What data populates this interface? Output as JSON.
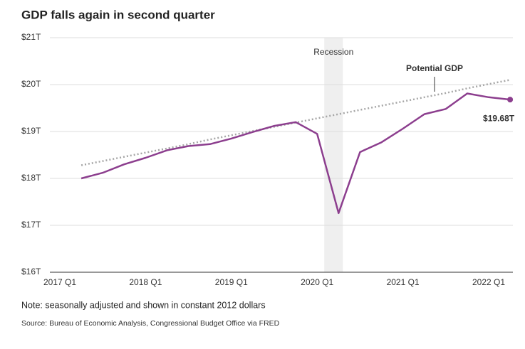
{
  "chart_data": {
    "type": "line",
    "title": "GDP falls again in second quarter",
    "categories": [
      "2017 Q1",
      null,
      null,
      null,
      "2018 Q1",
      null,
      null,
      null,
      "2019 Q1",
      null,
      null,
      null,
      "2020 Q1",
      null,
      null,
      null,
      "2021 Q1",
      null,
      null,
      null,
      "2022 Q1",
      null
    ],
    "series": [
      {
        "name": "Potential GDP",
        "color": "#a6a6a6",
        "values": [
          null,
          18.28,
          18.37,
          18.46,
          18.55,
          18.64,
          18.73,
          18.83,
          18.92,
          19.01,
          19.1,
          19.19,
          19.28,
          19.37,
          19.46,
          19.55,
          19.64,
          19.73,
          19.82,
          19.92,
          20.01,
          20.1
        ]
      },
      {
        "name": "GDP",
        "color": "#8c3e8e",
        "values": [
          null,
          18.0,
          18.12,
          18.3,
          18.44,
          18.6,
          18.69,
          18.73,
          18.85,
          18.99,
          19.12,
          19.2,
          18.95,
          17.26,
          18.56,
          18.77,
          19.06,
          19.37,
          19.48,
          19.81,
          19.73,
          19.68
        ],
        "value_labels": [
          null,
          null,
          null,
          null,
          null,
          null,
          null,
          null,
          null,
          null,
          null,
          null,
          null,
          null,
          null,
          null,
          null,
          null,
          null,
          null,
          null,
          "$19.68T"
        ]
      }
    ],
    "ylim": [
      16,
      21
    ],
    "yticks": [
      {
        "value": 16,
        "label": "$16T"
      },
      {
        "value": 17,
        "label": "$17T"
      },
      {
        "value": 18,
        "label": "$18T"
      },
      {
        "value": 19,
        "label": "$19T"
      },
      {
        "value": 20,
        "label": "$20T"
      },
      {
        "value": 21,
        "label": "$21T"
      }
    ],
    "grid": true,
    "recession": {
      "label": "Recession",
      "start": 12,
      "end": 13
    },
    "note": "Note: seasonally adjusted and shown in constant 2012 dollars",
    "source": "Source: Bureau of Economic Analysis, Congressional Budget Office via FRED"
  }
}
